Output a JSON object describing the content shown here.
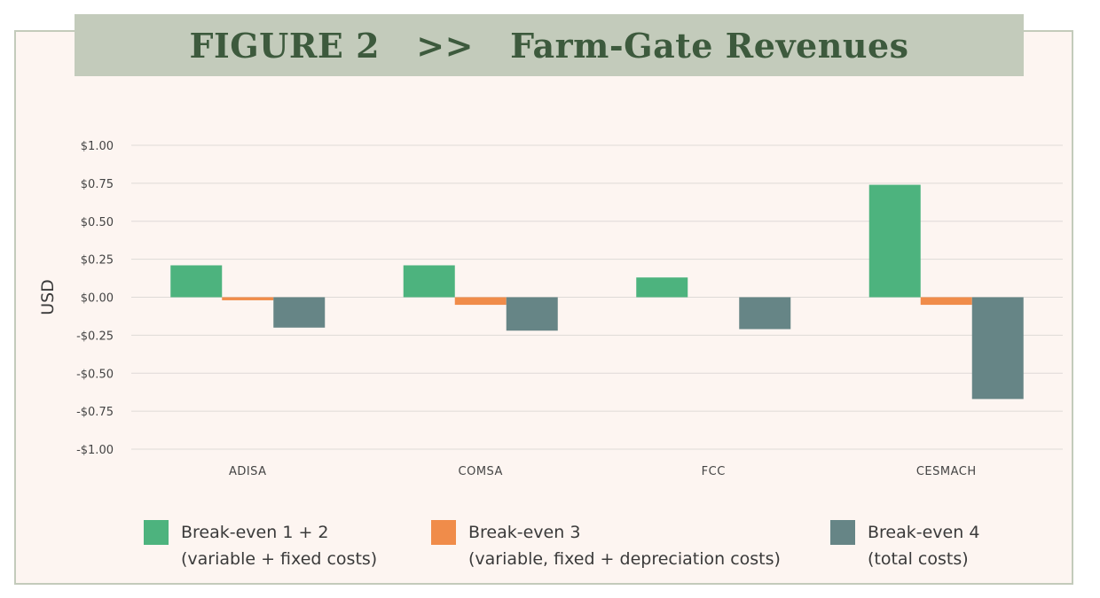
{
  "title": {
    "prefix": "FIGURE 2",
    "separator": ">>",
    "text": "Farm-Gate Revenues"
  },
  "colors": {
    "frame_bg": "#fdf5f1",
    "title_band": "#c3cbbb",
    "title_text": "#3d5a3d",
    "gridline": "#dedad7",
    "axis_text": "#444444"
  },
  "chart_data": {
    "type": "bar",
    "ylabel": "USD",
    "xlabel": "",
    "ylim": [
      -1.0,
      1.0
    ],
    "yticks": [
      1.0,
      0.75,
      0.5,
      0.25,
      0.0,
      -0.25,
      -0.5,
      -0.75,
      -1.0
    ],
    "ytick_labels": [
      "$1.00",
      "$0.75",
      "$0.50",
      "$0.25",
      "$0.00",
      "-$0.25",
      "-$0.50",
      "-$0.75",
      "-$1.00"
    ],
    "grid": true,
    "legend_position": "bottom",
    "categories": [
      "ADISA",
      "COMSA",
      "FCC",
      "CESMACH"
    ],
    "series": [
      {
        "name": "Break-even 1 + 2",
        "note": "(variable + fixed costs)",
        "color": "#4db37e",
        "values": [
          0.21,
          0.21,
          0.13,
          0.74
        ]
      },
      {
        "name": "Break-even 3",
        "note": "(variable, fixed + depreciation costs)",
        "color": "#f08c4a",
        "values": [
          -0.02,
          -0.05,
          0.0,
          -0.05
        ]
      },
      {
        "name": "Break-even 4",
        "note": "(total costs)",
        "color": "#668586",
        "values": [
          -0.2,
          -0.22,
          -0.21,
          -0.67
        ]
      }
    ]
  }
}
